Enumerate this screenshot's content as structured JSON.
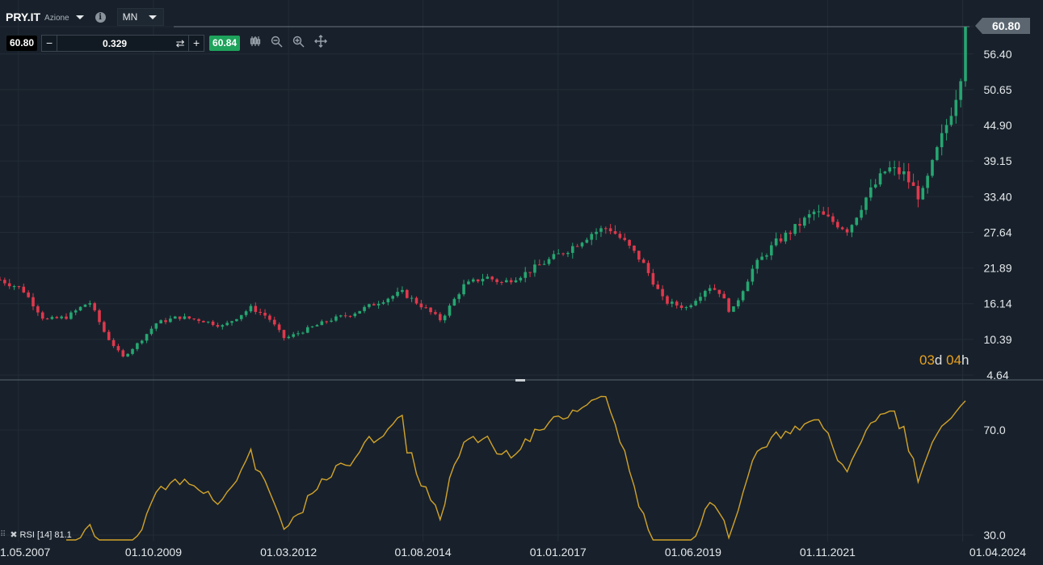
{
  "header": {
    "symbol": "PRY.IT",
    "asset_type": "Azione",
    "info_icon": "info-icon",
    "timeframe": "MN"
  },
  "trade": {
    "bid": "60.80",
    "quantity": "0.329",
    "ask": "60.84",
    "minus_label": "−",
    "plus_label": "+",
    "swap_glyph": "⇄",
    "tools": [
      "candles-icon",
      "zoom-out-icon",
      "zoom-in-icon",
      "move-icon"
    ]
  },
  "last_price": "60.80",
  "countdown": {
    "days": "03",
    "d": "d",
    "hours": "04",
    "h": "h"
  },
  "rsi_label": {
    "name": "RSI [14]",
    "value": "81.1"
  },
  "colors": {
    "background": "#18212b",
    "up": "#26a671",
    "down": "#e0384c",
    "rsi": "#d2a32a",
    "grid": "#222c36"
  },
  "chart_data": [
    {
      "type": "candlestick",
      "y_ticks": [
        "60.80",
        "56.40",
        "50.65",
        "44.90",
        "39.15",
        "33.40",
        "27.64",
        "21.89",
        "16.14",
        "10.39",
        "4.64"
      ],
      "ylim": [
        4.64,
        60.8
      ],
      "x_ticks": [
        "1.05.2007",
        "01.10.2009",
        "01.03.2012",
        "01.08.2014",
        "01.01.2017",
        "01.06.2019",
        "01.11.2021",
        "01.04.2024"
      ],
      "close_points": [
        [
          2007.0,
          20.0
        ],
        [
          2007.4,
          18.5
        ],
        [
          2007.8,
          13.5
        ],
        [
          2008.2,
          14.0
        ],
        [
          2008.6,
          16.5
        ],
        [
          2008.9,
          11.0
        ],
        [
          2009.2,
          7.5
        ],
        [
          2009.5,
          10.0
        ],
        [
          2009.8,
          13.0
        ],
        [
          2010.2,
          14.0
        ],
        [
          2010.6,
          13.5
        ],
        [
          2011.0,
          12.5
        ],
        [
          2011.5,
          15.5
        ],
        [
          2011.8,
          14.0
        ],
        [
          2012.1,
          10.5
        ],
        [
          2012.5,
          12.0
        ],
        [
          2012.9,
          13.5
        ],
        [
          2013.3,
          14.5
        ],
        [
          2013.8,
          16.5
        ],
        [
          2014.2,
          18.0
        ],
        [
          2014.6,
          15.5
        ],
        [
          2014.9,
          13.5
        ],
        [
          2015.3,
          19.0
        ],
        [
          2015.7,
          20.5
        ],
        [
          2016.0,
          19.5
        ],
        [
          2016.4,
          21.0
        ],
        [
          2016.8,
          23.0
        ],
        [
          2017.2,
          25.0
        ],
        [
          2017.6,
          27.5
        ],
        [
          2017.9,
          28.5
        ],
        [
          2018.2,
          26.0
        ],
        [
          2018.5,
          23.0
        ],
        [
          2018.9,
          16.5
        ],
        [
          2019.3,
          15.5
        ],
        [
          2019.7,
          19.0
        ],
        [
          2019.9,
          18.0
        ],
        [
          2020.1,
          14.5
        ],
        [
          2020.5,
          22.0
        ],
        [
          2020.9,
          26.0
        ],
        [
          2021.2,
          28.0
        ],
        [
          2021.6,
          31.0
        ],
        [
          2021.9,
          29.5
        ],
        [
          2022.2,
          28.0
        ],
        [
          2022.5,
          33.0
        ],
        [
          2022.9,
          38.0
        ],
        [
          2023.2,
          37.0
        ],
        [
          2023.5,
          33.0
        ],
        [
          2023.8,
          41.0
        ],
        [
          2024.0,
          46.0
        ],
        [
          2024.2,
          52.0
        ],
        [
          2024.3,
          60.8
        ]
      ]
    },
    {
      "type": "line",
      "indicator": "RSI [14]",
      "y_ticks": [
        "70.0",
        "30.0"
      ],
      "ylim": [
        30.0,
        70.0
      ],
      "last_value": 81.1
    }
  ]
}
